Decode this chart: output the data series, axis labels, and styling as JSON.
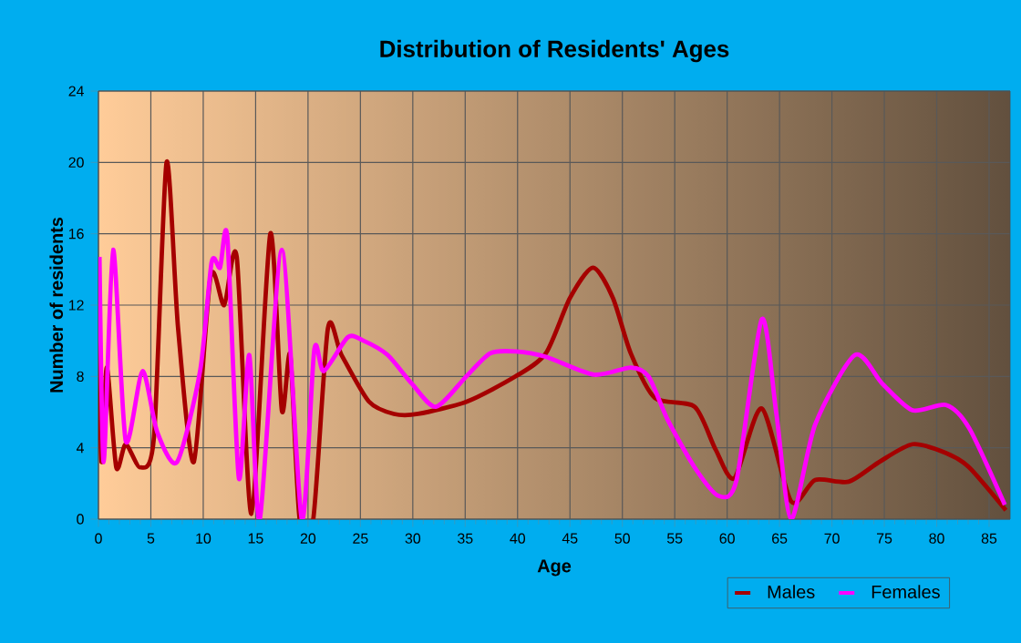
{
  "chart_data": {
    "type": "line",
    "title": "Distribution of Residents' Ages",
    "xlabel": "Age",
    "ylabel": "Number of residents",
    "xlim": [
      0,
      87
    ],
    "ylim": [
      0,
      24
    ],
    "xticks": [
      0,
      5,
      10,
      15,
      20,
      25,
      30,
      35,
      40,
      45,
      50,
      55,
      60,
      65,
      70,
      75,
      80,
      85
    ],
    "yticks": [
      0,
      4,
      8,
      12,
      16,
      20,
      24
    ],
    "grid": true,
    "legend": "bottom right",
    "series": [
      {
        "name": "Males",
        "color": "#a50000",
        "x": [
          0,
          0.3,
          0.8,
          1.7,
          2.6,
          4,
          5.3,
          6.5,
          7.6,
          9.1,
          10.7,
          12,
          13.2,
          14.6,
          16.4,
          17.5,
          18.3,
          19.2,
          20.5,
          21.9,
          23.2,
          25.8,
          28.2,
          30.5,
          35.2,
          39.8,
          42.7,
          45,
          47.2,
          49.1,
          50.8,
          53.1,
          56.9,
          58.9,
          60.7,
          63.3,
          66.1,
          68.4,
          71.6,
          74.5,
          77.7,
          80.9,
          83.1,
          86.6
        ],
        "values": [
          10.3,
          3.2,
          8.5,
          2.9,
          4.2,
          2.9,
          4.6,
          20,
          10.7,
          3.2,
          13.6,
          12,
          14.7,
          0.3,
          16,
          6.1,
          9.2,
          0,
          0,
          10.7,
          9.2,
          6.6,
          5.9,
          5.9,
          6.6,
          8,
          9.3,
          12.4,
          14.1,
          12.4,
          9.3,
          6.8,
          6.3,
          3.9,
          2.3,
          6.2,
          1,
          2.2,
          2.1,
          3.2,
          4.2,
          3.7,
          2.9,
          0.5
        ]
      },
      {
        "name": "Females",
        "color": "#ff00ff",
        "x": [
          0.1,
          0.5,
          1.4,
          2.6,
          4.2,
          5.6,
          7.5,
          9.7,
          10.8,
          11.6,
          12.3,
          13.4,
          14.4,
          15.4,
          17.5,
          19.4,
          20.6,
          21.5,
          23.8,
          25.3,
          27.6,
          29.9,
          32.2,
          35.1,
          37.4,
          39.8,
          42.7,
          47.3,
          50.8,
          52.5,
          54.3,
          56.9,
          59.2,
          60.9,
          63.3,
          64.7,
          66.1,
          68.4,
          72.2,
          74.8,
          77.7,
          80.9,
          83.1,
          86.5
        ],
        "values": [
          14.7,
          3.2,
          15.1,
          4.4,
          8.3,
          4.9,
          3.2,
          8.3,
          14.4,
          14.1,
          15.8,
          2.3,
          9.2,
          0,
          15.1,
          0,
          9.5,
          8.3,
          10.2,
          10,
          9.2,
          7.6,
          6.3,
          8,
          9.3,
          9.4,
          9.1,
          8.1,
          8.5,
          8,
          5.6,
          2.9,
          1.3,
          2.2,
          11.2,
          5.9,
          0,
          5.3,
          9.2,
          7.6,
          6.1,
          6.4,
          5.1,
          0.8
        ]
      }
    ]
  }
}
